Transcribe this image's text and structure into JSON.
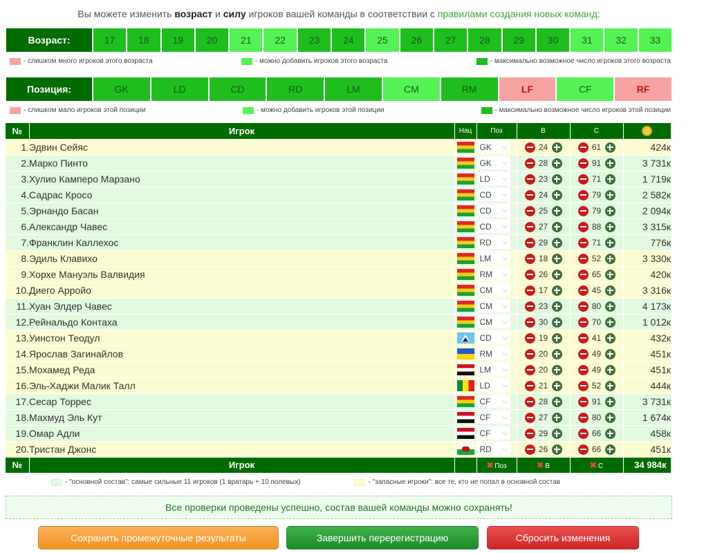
{
  "intro": {
    "text_before": "Вы можете изменить ",
    "bold1": "возраст",
    "text_and": " и ",
    "bold2": "силу",
    "text_mid": " игроков вашей команды в соответствии с ",
    "link": "правилами создания новых команд",
    "text_end": ":"
  },
  "age": {
    "label": "Возраст:",
    "cells": [
      {
        "v": "17",
        "s": "max"
      },
      {
        "v": "18",
        "s": "max"
      },
      {
        "v": "19",
        "s": "max"
      },
      {
        "v": "20",
        "s": "max"
      },
      {
        "v": "21",
        "s": "add"
      },
      {
        "v": "22",
        "s": "add"
      },
      {
        "v": "23",
        "s": "max"
      },
      {
        "v": "24",
        "s": "max"
      },
      {
        "v": "25",
        "s": "add"
      },
      {
        "v": "26",
        "s": "max"
      },
      {
        "v": "27",
        "s": "max"
      },
      {
        "v": "28",
        "s": "max"
      },
      {
        "v": "29",
        "s": "max"
      },
      {
        "v": "30",
        "s": "max"
      },
      {
        "v": "31",
        "s": "add"
      },
      {
        "v": "32",
        "s": "add"
      },
      {
        "v": "33",
        "s": "add"
      }
    ],
    "legend_few": "- слишком много игроков этого возраста",
    "legend_add": "- можно добавить игроков этого возраста",
    "legend_max": "- максимально возможное число игроков этого возраста"
  },
  "position": {
    "label": "Позиция:",
    "cells": [
      {
        "v": "GK",
        "s": "max"
      },
      {
        "v": "LD",
        "s": "max"
      },
      {
        "v": "CD",
        "s": "max"
      },
      {
        "v": "RD",
        "s": "max"
      },
      {
        "v": "LM",
        "s": "max"
      },
      {
        "v": "CM",
        "s": "add"
      },
      {
        "v": "RM",
        "s": "max"
      },
      {
        "v": "LF",
        "s": "few"
      },
      {
        "v": "CF",
        "s": "add"
      },
      {
        "v": "RF",
        "s": "few"
      }
    ],
    "legend_few": "- слишком мало игроков этой позиции",
    "legend_add": "- можно добавить игроков этой позиции",
    "legend_max": "- максимально возможное число игроков этой позиции"
  },
  "colors": {
    "max": "#1fbe1f",
    "add": "#55f255",
    "few": "#f7a3a3",
    "header": "#006b00",
    "main_row": "#e3f9e0",
    "reserve_row": "#fcfcd2"
  },
  "table": {
    "h_num": "№",
    "h_player": "Игрок",
    "h_nat": "Нац",
    "h_pos": "Поз",
    "h_age": "В",
    "h_str": "С",
    "h_value_icon": "coins-icon",
    "f_num": "№",
    "f_player": "Игрок",
    "f_pos": "Поз",
    "f_age": "В",
    "f_str": "С",
    "f_total": "34 984к"
  },
  "players": [
    {
      "n": "1.",
      "name": "Эдвин Сейяс",
      "flag": "bo",
      "pos": "GK",
      "age": "24",
      "str": "61",
      "val": "424к",
      "row": "reserve"
    },
    {
      "n": "2.",
      "name": "Марко Пинто",
      "flag": "bo",
      "pos": "GK",
      "age": "28",
      "str": "91",
      "val": "3 731к",
      "row": "main"
    },
    {
      "n": "3.",
      "name": "Хулио Камперо Марзано",
      "flag": "bo",
      "pos": "LD",
      "age": "23",
      "str": "71",
      "val": "1 719к",
      "row": "main"
    },
    {
      "n": "4.",
      "name": "Садрас Кросо",
      "flag": "bo",
      "pos": "CD",
      "age": "24",
      "str": "79",
      "val": "2 582к",
      "row": "main"
    },
    {
      "n": "5.",
      "name": "Эрнандо Басан",
      "flag": "bo",
      "pos": "CD",
      "age": "25",
      "str": "79",
      "val": "2 094к",
      "row": "main"
    },
    {
      "n": "6.",
      "name": "Александр Чавес",
      "flag": "bo",
      "pos": "CD",
      "age": "27",
      "str": "88",
      "val": "3 315к",
      "row": "main"
    },
    {
      "n": "7.",
      "name": "Франклин Каллехос",
      "flag": "bo",
      "pos": "RD",
      "age": "29",
      "str": "71",
      "val": "776к",
      "row": "main"
    },
    {
      "n": "8.",
      "name": "Эдиль Клавихо",
      "flag": "bo",
      "pos": "LM",
      "age": "18",
      "str": "52",
      "val": "3 330к",
      "row": "reserve"
    },
    {
      "n": "9.",
      "name": "Хорхе Мануэль Валвидия",
      "flag": "bo",
      "pos": "RM",
      "age": "26",
      "str": "65",
      "val": "420к",
      "row": "reserve"
    },
    {
      "n": "10.",
      "name": "Диего Арройо",
      "flag": "bo",
      "pos": "CM",
      "age": "17",
      "str": "45",
      "val": "3 316к",
      "row": "reserve"
    },
    {
      "n": "11.",
      "name": "Хуан Элдер Чавес",
      "flag": "bo",
      "pos": "CM",
      "age": "23",
      "str": "80",
      "val": "4 173к",
      "row": "main"
    },
    {
      "n": "12.",
      "name": "Рейнальдо Контаха",
      "flag": "bo",
      "pos": "CM",
      "age": "30",
      "str": "70",
      "val": "1 012к",
      "row": "main"
    },
    {
      "n": "13.",
      "name": "Уинстон Теодул",
      "flag": "lc",
      "pos": "CD",
      "age": "19",
      "str": "41",
      "val": "432к",
      "row": "reserve"
    },
    {
      "n": "14.",
      "name": "Ярослав Загинайлов",
      "flag": "ua",
      "pos": "RM",
      "age": "20",
      "str": "49",
      "val": "451к",
      "row": "reserve"
    },
    {
      "n": "15.",
      "name": "Мохамед Реда",
      "flag": "eg",
      "pos": "LM",
      "age": "20",
      "str": "49",
      "val": "451к",
      "row": "reserve"
    },
    {
      "n": "16.",
      "name": "Эль-Хаджи Малик Талл",
      "flag": "sn",
      "pos": "LD",
      "age": "21",
      "str": "52",
      "val": "444к",
      "row": "reserve"
    },
    {
      "n": "17.",
      "name": "Сесар Торрес",
      "flag": "bo",
      "pos": "CF",
      "age": "28",
      "str": "91",
      "val": "3 731к",
      "row": "main"
    },
    {
      "n": "18.",
      "name": "Махмуд Эль Кут",
      "flag": "eg",
      "pos": "CF",
      "age": "27",
      "str": "80",
      "val": "1 674к",
      "row": "main"
    },
    {
      "n": "19.",
      "name": "Омар Адли",
      "flag": "eg",
      "pos": "CF",
      "age": "29",
      "str": "66",
      "val": "458к",
      "row": "main"
    },
    {
      "n": "20.",
      "name": "Тристан Джонс",
      "flag": "wa",
      "pos": "RD",
      "age": "26",
      "str": "66",
      "val": "451к",
      "row": "reserve"
    }
  ],
  "footer_legend": {
    "main": "- \"основной состав\": самые сильные 11 игроков (1 вратарь + 10 полевых)",
    "reserve": "- \"запасные игроки\": все те, кто не попал в основной состав"
  },
  "status_message": "Все проверки проведены успешно, состав вашей команды можно сохранять!",
  "buttons": {
    "save_partial": "Сохранить промежуточные результаты",
    "finish": "Завершить перерегистрацию",
    "reset": "Сбросить изменения"
  }
}
